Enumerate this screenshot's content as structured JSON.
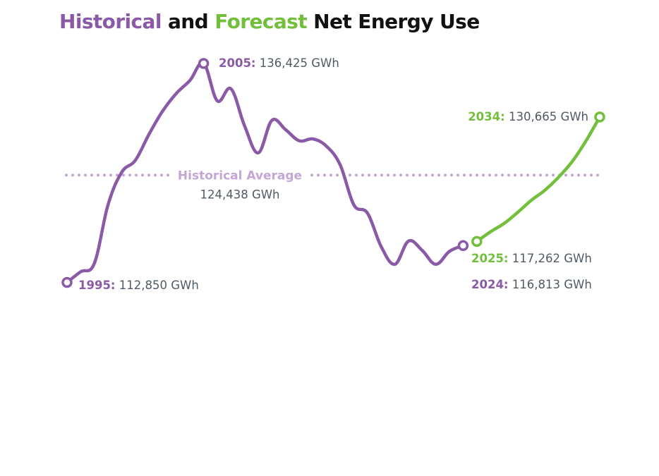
{
  "title": {
    "part1": "Historical",
    "part2": " and ",
    "part3": "Forecast",
    "part4": " Net Energy Use"
  },
  "colors": {
    "historical": "#8a5aa6",
    "forecast": "#72bf3c",
    "average": "#c4a6d6",
    "text": "#505a66",
    "title": "#111111"
  },
  "chart_data": {
    "type": "line",
    "title": "Historical and Forecast Net Energy Use",
    "xlabel": "",
    "ylabel": "",
    "unit": "GWh",
    "grid": false,
    "xlim": [
      1995,
      2034
    ],
    "ylim": [
      110000,
      138000
    ],
    "series": [
      {
        "name": "Historical",
        "color": "#8a5aa6",
        "x": [
          1995,
          1996,
          1997,
          1998,
          1999,
          2000,
          2001,
          2002,
          2003,
          2004,
          2005,
          2006,
          2007,
          2008,
          2009,
          2010,
          2011,
          2012,
          2013,
          2014,
          2015,
          2016,
          2017,
          2018,
          2019,
          2020,
          2021,
          2022,
          2023,
          2024
        ],
        "y": [
          112850,
          114000,
          114900,
          121200,
          124700,
          126000,
          128800,
          131300,
          133200,
          134600,
          136425,
          132400,
          133700,
          129700,
          126800,
          130300,
          129300,
          128100,
          128300,
          127500,
          125500,
          121200,
          120300,
          116700,
          114800,
          117300,
          116300,
          114800,
          116200,
          116813
        ]
      },
      {
        "name": "Forecast",
        "color": "#72bf3c",
        "x": [
          2025,
          2026,
          2027,
          2028,
          2029,
          2030,
          2031,
          2032,
          2033,
          2034
        ],
        "y": [
          117262,
          118300,
          119200,
          120400,
          121700,
          122800,
          124200,
          125900,
          128100,
          130665
        ]
      }
    ],
    "reference_lines": [
      {
        "label": "Historical Average",
        "value": 124438,
        "value_label": "124,438 GWh"
      }
    ],
    "annotations": [
      {
        "x": 1995,
        "series": "Historical",
        "year": "1995:",
        "value": " 112,850 GWh"
      },
      {
        "x": 2005,
        "series": "Historical",
        "year": "2005:",
        "value": " 136,425 GWh"
      },
      {
        "x": 2034,
        "series": "Forecast",
        "year": "2034:",
        "value": " 130,665 GWh"
      },
      {
        "x": 2025,
        "series": "Forecast",
        "year": "2025:",
        "value": " 117,262 GWh"
      },
      {
        "x": 2024,
        "series": "Historical",
        "year": "2024:",
        "value": " 116,813 GWh"
      }
    ]
  }
}
